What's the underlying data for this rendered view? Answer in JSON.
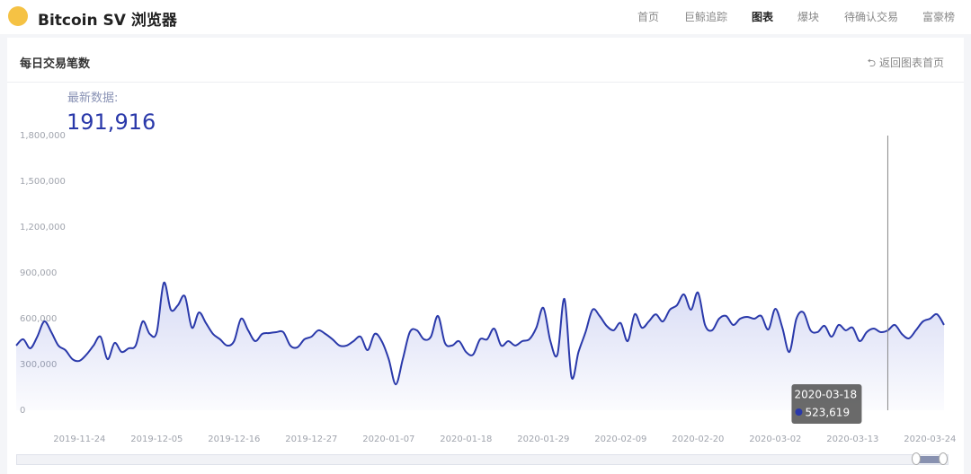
{
  "header": {
    "brand": "Bitcoin SV 浏览器",
    "nav": [
      "首页",
      "巨鲸追踪",
      "图表",
      "爆块",
      "待确认交易",
      "富豪榜"
    ]
  },
  "card": {
    "title": "每日交易笔数",
    "back": "返回图表首页",
    "latest_label": "最新数据:",
    "latest_value": "191,916"
  },
  "chart_data": {
    "type": "line",
    "x": [
      "2019-11-15",
      "2019-11-16",
      "2019-11-17",
      "2019-11-18",
      "2019-11-19",
      "2019-11-20",
      "2019-11-21",
      "2019-11-22",
      "2019-11-23",
      "2019-11-24",
      "2019-11-25",
      "2019-11-26",
      "2019-11-27",
      "2019-11-28",
      "2019-11-29",
      "2019-11-30",
      "2019-12-01",
      "2019-12-02",
      "2019-12-03",
      "2019-12-04",
      "2019-12-05",
      "2019-12-06",
      "2019-12-07",
      "2019-12-08",
      "2019-12-09",
      "2019-12-10",
      "2019-12-11",
      "2019-12-12",
      "2019-12-13",
      "2019-12-14",
      "2019-12-15",
      "2019-12-16",
      "2019-12-17",
      "2019-12-18",
      "2019-12-19",
      "2019-12-20",
      "2019-12-21",
      "2019-12-22",
      "2019-12-23",
      "2019-12-24",
      "2019-12-25",
      "2019-12-26",
      "2019-12-27",
      "2019-12-28",
      "2019-12-29",
      "2019-12-30",
      "2019-12-31",
      "2020-01-01",
      "2020-01-02",
      "2020-01-03",
      "2020-01-04",
      "2020-01-05",
      "2020-01-06",
      "2020-01-07",
      "2020-01-08",
      "2020-01-09",
      "2020-01-10",
      "2020-01-11",
      "2020-01-12",
      "2020-01-13",
      "2020-01-14",
      "2020-01-15",
      "2020-01-16",
      "2020-01-17",
      "2020-01-18",
      "2020-01-19",
      "2020-01-20",
      "2020-01-21",
      "2020-01-22",
      "2020-01-23",
      "2020-01-24",
      "2020-01-25",
      "2020-01-26",
      "2020-01-27",
      "2020-01-28",
      "2020-01-29",
      "2020-01-30",
      "2020-01-31",
      "2020-02-01",
      "2020-02-02",
      "2020-02-03",
      "2020-02-04",
      "2020-02-05",
      "2020-02-06",
      "2020-02-07",
      "2020-02-08",
      "2020-02-09",
      "2020-02-10",
      "2020-02-11",
      "2020-02-12",
      "2020-02-13",
      "2020-02-14",
      "2020-02-15",
      "2020-02-16",
      "2020-02-17",
      "2020-02-18",
      "2020-02-19",
      "2020-02-20",
      "2020-02-21",
      "2020-02-22",
      "2020-02-23",
      "2020-02-24",
      "2020-02-25",
      "2020-02-26",
      "2020-02-27",
      "2020-02-28",
      "2020-02-29",
      "2020-03-01",
      "2020-03-02",
      "2020-03-03",
      "2020-03-04",
      "2020-03-05",
      "2020-03-06",
      "2020-03-07",
      "2020-03-08",
      "2020-03-09",
      "2020-03-10",
      "2020-03-11",
      "2020-03-12",
      "2020-03-13",
      "2020-03-14",
      "2020-03-15",
      "2020-03-16",
      "2020-03-17",
      "2020-03-18",
      "2020-03-19",
      "2020-03-20",
      "2020-03-21",
      "2020-03-22",
      "2020-03-23",
      "2020-03-24",
      "2020-03-25",
      "2020-03-26"
    ],
    "series": [
      {
        "color": "#2a39aa",
        "values": [
          424000,
          465000,
          406000,
          482000,
          582000,
          512000,
          424000,
          394000,
          335000,
          324000,
          365000,
          424000,
          482000,
          335000,
          441000,
          382000,
          406000,
          424000,
          582000,
          500000,
          512000,
          835000,
          659000,
          688000,
          747000,
          541000,
          641000,
          571000,
          500000,
          465000,
          424000,
          453000,
          600000,
          524000,
          453000,
          500000,
          506000,
          512000,
          512000,
          424000,
          412000,
          465000,
          482000,
          524000,
          500000,
          465000,
          424000,
          424000,
          453000,
          482000,
          394000,
          500000,
          453000,
          335000,
          170000,
          335000,
          512000,
          524000,
          465000,
          482000,
          618000,
          441000,
          424000,
          453000,
          382000,
          365000,
          465000,
          465000,
          535000,
          424000,
          453000,
          424000,
          453000,
          465000,
          541000,
          671000,
          453000,
          365000,
          729000,
          218000,
          382000,
          512000,
          659000,
          618000,
          553000,
          524000,
          571000,
          453000,
          629000,
          541000,
          582000,
          629000,
          582000,
          659000,
          688000,
          759000,
          659000,
          771000,
          559000,
          524000,
          600000,
          618000,
          559000,
          600000,
          612000,
          600000,
          618000,
          529000,
          665000,
          541000,
          382000,
          600000,
          641000,
          524000,
          512000,
          553000,
          482000,
          559000,
          524000,
          541000,
          453000,
          512000,
          535000,
          512000,
          523619,
          559000,
          500000,
          471000,
          524000,
          582000,
          600000,
          629000,
          559000
        ]
      }
    ],
    "xlim": [
      "2019-11-15",
      "2020-03-26"
    ],
    "xticks": [
      "2019-11-24",
      "2019-12-05",
      "2019-12-16",
      "2019-12-27",
      "2020-01-07",
      "2020-01-18",
      "2020-01-29",
      "2020-02-09",
      "2020-02-20",
      "2020-03-02",
      "2020-03-13",
      "2020-03-24"
    ],
    "ylim": [
      0,
      1800000
    ],
    "yticks": [
      0,
      {
        "value": 300000,
        "label": "300,000"
      },
      {
        "value": 600000,
        "label": "600,000"
      },
      {
        "value": 900000,
        "label": "900,000"
      },
      {
        "value": 1200000,
        "label": "1,200,000"
      },
      {
        "value": 1500000,
        "label": "1,500,000"
      },
      {
        "value": 1800000,
        "label": "1,800,000"
      }
    ],
    "grid": false,
    "tooltip": {
      "x": "2020-03-18",
      "value_label": "523,619"
    }
  }
}
